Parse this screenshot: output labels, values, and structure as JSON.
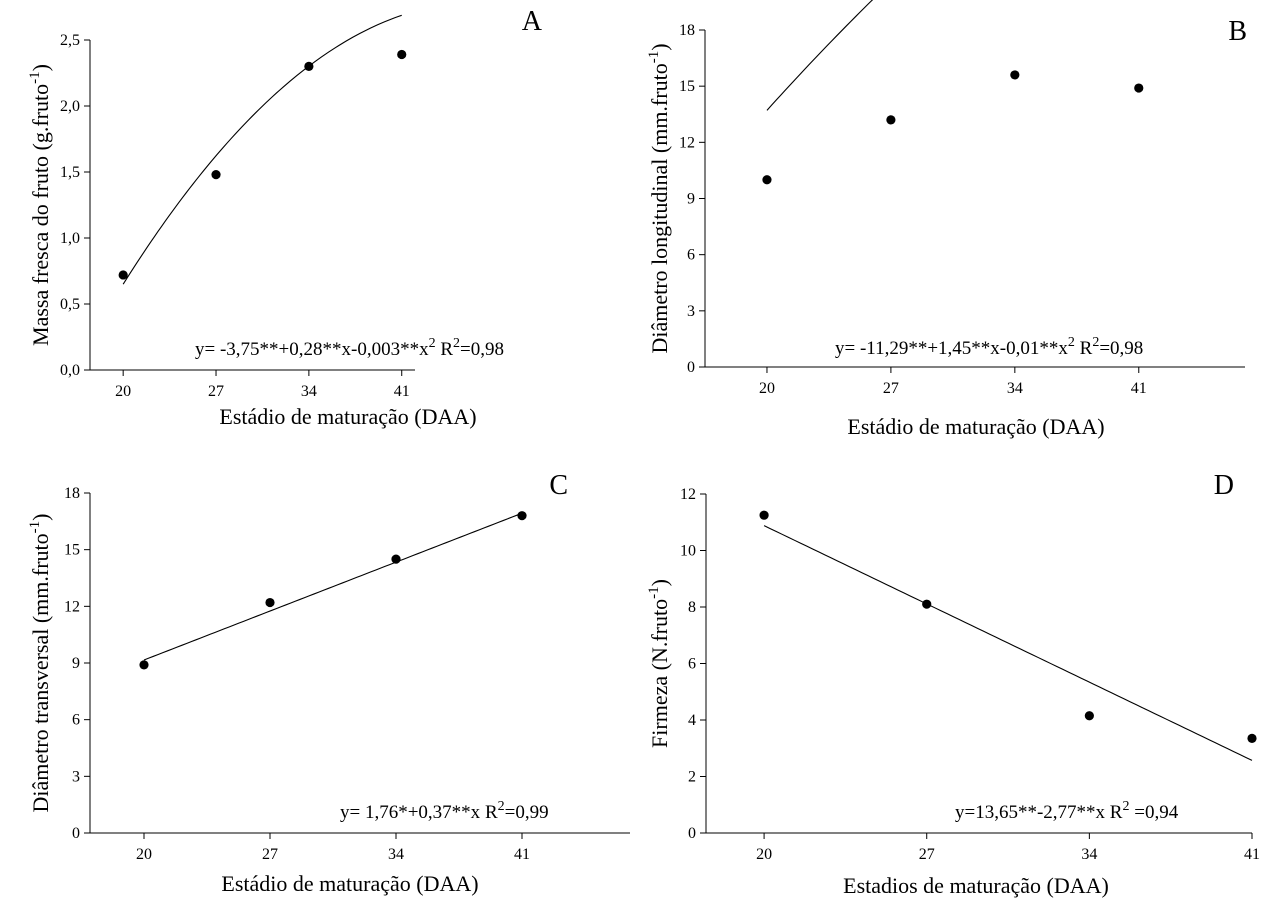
{
  "chart_data": [
    {
      "type": "scatter",
      "panel": "A",
      "xlabel": "Estádio de maturação (DAA)",
      "ylabel": "Massa fresca do fruto (g.fruto",
      "ylabel_sup": "-1",
      "ylabel_end": ")",
      "xticks": [
        "20",
        "27",
        "34",
        "41"
      ],
      "yticks": [
        "0,0",
        "0,5",
        "1,0",
        "1,5",
        "2,0",
        "2,5"
      ],
      "xlim": [
        17.5,
        42
      ],
      "ylim": [
        0,
        2.5
      ],
      "x": [
        20,
        27,
        34,
        41
      ],
      "y": [
        0.72,
        1.48,
        2.3,
        2.39
      ],
      "fit": {
        "type": "quadratic",
        "b0": -3.75,
        "b1": 0.28,
        "b2": -0.003,
        "xmin": 20,
        "xmax": 41
      },
      "equation": "y= -3,75**+0,28**x-0,003**x",
      "equation_sup": "2",
      "r2_prefix": " R",
      "r2_sup": "2",
      "r2_value": "=0,98"
    },
    {
      "type": "scatter",
      "panel": "B",
      "xlabel": "Estádio de maturação (DAA)",
      "ylabel": "Diâmetro longitudinal (mm.fruto",
      "ylabel_sup": "-1",
      "ylabel_end": ")",
      "xticks": [
        "20",
        "27",
        "34",
        "41"
      ],
      "yticks": [
        "0",
        "3",
        "6",
        "9",
        "12",
        "15",
        "18"
      ],
      "xlim": [
        16.5,
        47
      ],
      "ylim": [
        0,
        18
      ],
      "x": [
        20,
        27,
        34,
        41
      ],
      "y": [
        10.0,
        13.2,
        15.6,
        14.9
      ],
      "fit": {
        "type": "quadratic",
        "b0": -11.29,
        "b1": 1.45,
        "b2": -0.01,
        "xmin": 20,
        "xmax": 41
      },
      "equation": "y= -11,29**+1,45**x-0,01**x",
      "equation_sup": "2",
      "r2_prefix": " R",
      "r2_sup": "2",
      "r2_value": "=0,98"
    },
    {
      "type": "scatter",
      "panel": "C",
      "xlabel": "Estádio de maturação (DAA)",
      "ylabel": "Diâmetro transversal (mm.fruto",
      "ylabel_sup": "-1",
      "ylabel_end": ")",
      "xticks": [
        "20",
        "27",
        "34",
        "41"
      ],
      "yticks": [
        "0",
        "3",
        "6",
        "9",
        "12",
        "15",
        "18"
      ],
      "xlim": [
        17,
        47
      ],
      "ylim": [
        0,
        18
      ],
      "x": [
        20,
        27,
        34,
        41
      ],
      "y": [
        8.9,
        12.2,
        14.5,
        16.8
      ],
      "fit": {
        "type": "linear",
        "b0": 1.76,
        "b1": 0.37,
        "xmin": 20,
        "xmax": 41
      },
      "equation": "y= 1,76*+0,37**x",
      "equation_sup": "",
      "r2_prefix": " R",
      "r2_sup": "2",
      "r2_value": "=0,99"
    },
    {
      "type": "scatter",
      "panel": "D",
      "xlabel": "Estadios de maturação (DAA)",
      "ylabel": "Firmeza (N.fruto",
      "ylabel_sup": "-1",
      "ylabel_end": ")",
      "xticks": [
        "20",
        "27",
        "34",
        "41"
      ],
      "yticks": [
        "0",
        "2",
        "4",
        "6",
        "8",
        "10",
        "12"
      ],
      "xlim": [
        17.5,
        41
      ],
      "ylim": [
        0,
        12
      ],
      "x": [
        20,
        27,
        34,
        41
      ],
      "y": [
        11.25,
        8.1,
        4.15,
        3.35
      ],
      "fit": {
        "type": "linear",
        "b0": 13.65,
        "b1": -2.77,
        "x_is_index": true,
        "xmin": 20,
        "xmax": 41
      },
      "equation": "y=13,65**-2,77**x",
      "equation_sup": "",
      "r2_prefix": " R",
      "r2_sup": "2",
      "r2_value": " =0,94"
    }
  ]
}
